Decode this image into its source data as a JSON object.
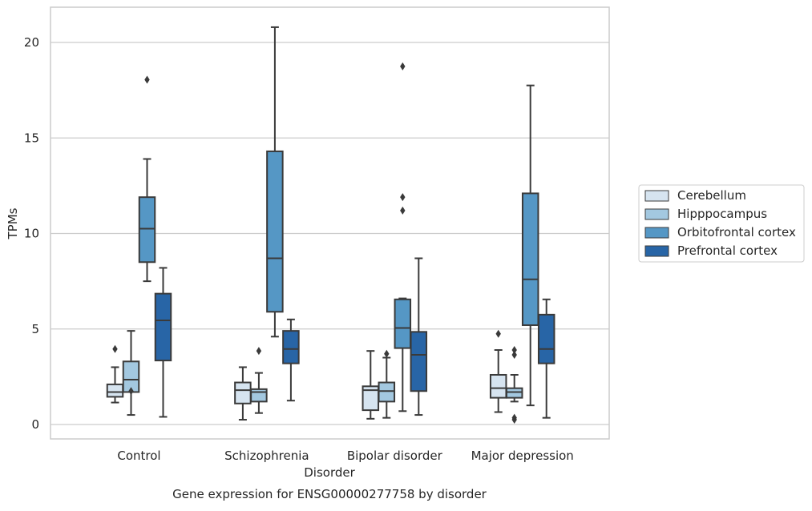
{
  "chart_data": {
    "type": "box",
    "title": "",
    "caption": "Gene expression for ENSG00000277758 by disorder",
    "xlabel": "Disorder",
    "ylabel": "TPMs",
    "ylim": [
      -0.6,
      21.8
    ],
    "yticks": [
      0,
      5,
      10,
      15,
      20
    ],
    "grid": "horizontal",
    "legend_position": "right",
    "categories": [
      "Control",
      "Schizophrenia",
      "Bipolar disorder",
      "Major depression"
    ],
    "series": [
      {
        "name": "Cerebellum",
        "color": "#d6e4f0",
        "boxes": [
          {
            "whisker_low": 1.15,
            "q1": 1.45,
            "median": 1.7,
            "q3": 2.1,
            "whisker_high": 3.0,
            "outliers": [
              3.95
            ]
          },
          {
            "whisker_low": 0.25,
            "q1": 1.1,
            "median": 1.8,
            "q3": 2.2,
            "whisker_high": 3.0,
            "outliers": []
          },
          {
            "whisker_low": 0.3,
            "q1": 0.75,
            "median": 1.8,
            "q3": 2.0,
            "whisker_high": 3.85,
            "outliers": []
          },
          {
            "whisker_low": 0.65,
            "q1": 1.4,
            "median": 1.9,
            "q3": 2.6,
            "whisker_high": 3.9,
            "outliers": [
              4.75
            ]
          }
        ]
      },
      {
        "name": "Hipppocampus",
        "color": "#a3c8e0",
        "boxes": [
          {
            "whisker_low": 0.5,
            "q1": 1.7,
            "median": 2.35,
            "q3": 3.3,
            "whisker_high": 4.9,
            "outliers": [
              1.75
            ]
          },
          {
            "whisker_low": 0.6,
            "q1": 1.2,
            "median": 1.7,
            "q3": 1.85,
            "whisker_high": 2.7,
            "outliers": [
              3.85
            ]
          },
          {
            "whisker_low": 0.35,
            "q1": 1.2,
            "median": 1.75,
            "q3": 2.2,
            "whisker_high": 3.5,
            "outliers": [
              3.7
            ]
          },
          {
            "whisker_low": 1.2,
            "q1": 1.4,
            "median": 1.7,
            "q3": 1.9,
            "whisker_high": 2.6,
            "outliers": [
              3.65,
              3.9,
              0.35,
              0.25
            ]
          }
        ]
      },
      {
        "name": "Orbitofrontal cortex",
        "color": "#5597c5",
        "boxes": [
          {
            "whisker_low": 7.5,
            "q1": 8.5,
            "median": 10.25,
            "q3": 11.9,
            "whisker_high": 13.9,
            "outliers": [
              18.05
            ]
          },
          {
            "whisker_low": 4.6,
            "q1": 5.9,
            "median": 8.7,
            "q3": 14.3,
            "whisker_high": 20.8,
            "outliers": []
          },
          {
            "whisker_low": 0.7,
            "q1": 4.0,
            "median": 5.05,
            "q3": 6.55,
            "whisker_high": 6.6,
            "outliers": [
              11.2,
              11.9,
              18.75
            ]
          },
          {
            "whisker_low": 1.0,
            "q1": 5.2,
            "median": 7.6,
            "q3": 12.1,
            "whisker_high": 17.75,
            "outliers": []
          }
        ]
      },
      {
        "name": "Prefrontal cortex",
        "color": "#2865a6",
        "boxes": [
          {
            "whisker_low": 0.4,
            "q1": 3.35,
            "median": 5.45,
            "q3": 6.85,
            "whisker_high": 8.2,
            "outliers": []
          },
          {
            "whisker_low": 1.25,
            "q1": 3.2,
            "median": 3.95,
            "q3": 4.9,
            "whisker_high": 5.5,
            "outliers": []
          },
          {
            "whisker_low": 0.5,
            "q1": 1.75,
            "median": 3.65,
            "q3": 4.85,
            "whisker_high": 8.7,
            "outliers": []
          },
          {
            "whisker_low": 0.35,
            "q1": 3.2,
            "median": 3.95,
            "q3": 5.75,
            "whisker_high": 6.55,
            "outliers": []
          }
        ]
      }
    ]
  }
}
